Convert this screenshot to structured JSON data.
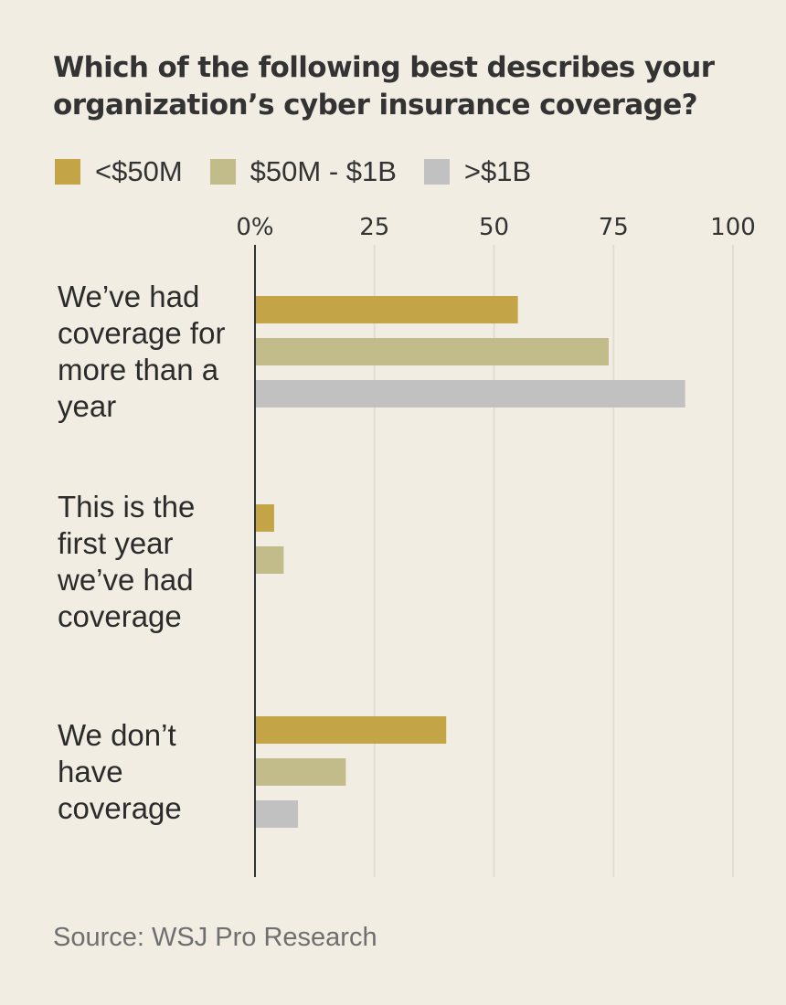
{
  "title": "Which of the following best describes your organization’s cyber insurance coverage?",
  "source": "Source: WSJ Pro Research",
  "colors": {
    "background": "#f1ede3",
    "under_50m": "#c3a547",
    "50m_1b": "#c2bb8a",
    "over_1b": "#c2c1c1",
    "axis": "#333333",
    "grid": "#e1ddd4"
  },
  "legend": [
    {
      "label": "<$50M",
      "color": "#c3a547"
    },
    {
      "label": "$50M - $1B",
      "color": "#c2bb8a"
    },
    {
      "label": ">$1B",
      "color": "#c2c1c1"
    }
  ],
  "chart_data": {
    "type": "bar",
    "orientation": "horizontal",
    "title": "Which of the following best describes your organization’s cyber insurance coverage?",
    "categories": [
      "We’ve had coverage for more than a year",
      "This is the first year we’ve had coverage",
      "We don’t have coverage"
    ],
    "category_lines": [
      [
        "We’ve had",
        "coverage for",
        "more than a",
        "year"
      ],
      [
        "This is the",
        "first year",
        "we’ve had",
        "coverage"
      ],
      [
        "We don’t",
        "have",
        "coverage"
      ]
    ],
    "series": [
      {
        "name": "<$50M",
        "values": [
          55,
          4,
          40
        ]
      },
      {
        "name": "$50M - $1B",
        "values": [
          74,
          6,
          19
        ]
      },
      {
        "name": ">$1B",
        "values": [
          90,
          0,
          9
        ]
      }
    ],
    "xlim": [
      0,
      100
    ],
    "xticks": [
      0,
      25,
      50,
      75,
      100
    ],
    "xtick_labels": [
      "0%",
      "25",
      "50",
      "75",
      "100"
    ],
    "xlabel": "",
    "ylabel": "",
    "grid": true,
    "legend_position": "top"
  }
}
